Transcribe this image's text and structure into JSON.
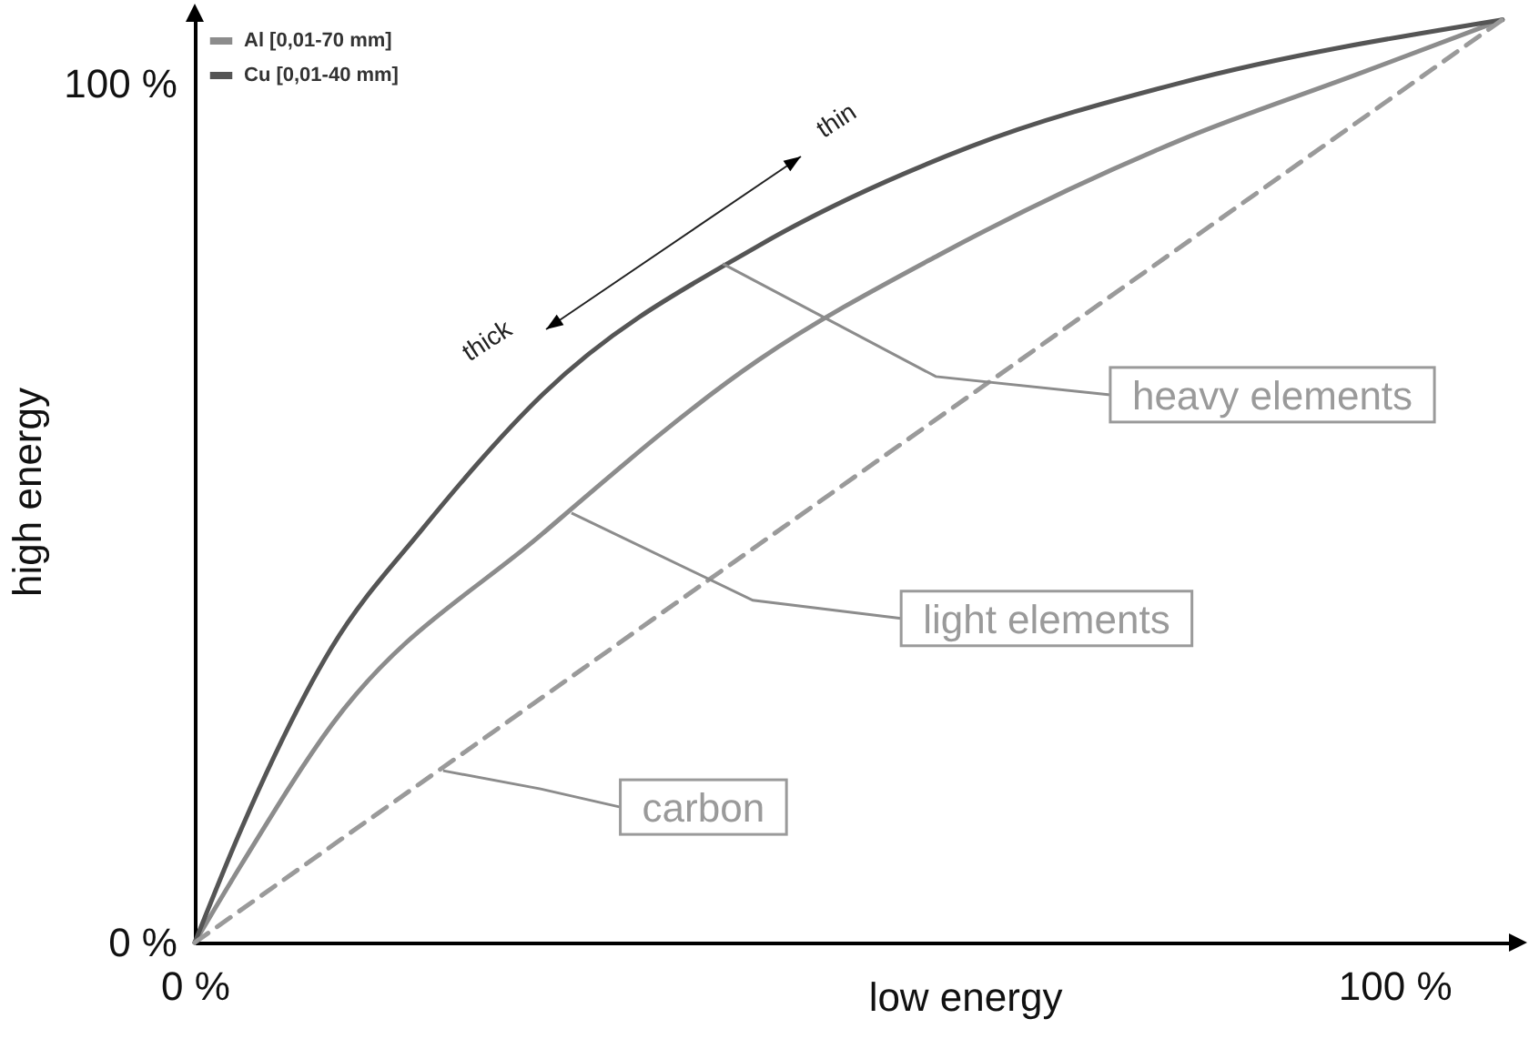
{
  "chart_data": {
    "type": "line",
    "xlabel": "low energy",
    "ylabel": "high energy",
    "xlim": [
      0,
      110
    ],
    "ylim": [
      0,
      108
    ],
    "xticks": [
      {
        "value": 0,
        "label": "0 %"
      },
      {
        "value": 100,
        "label": "100 %"
      }
    ],
    "yticks": [
      {
        "value": 0,
        "label": "0 %"
      },
      {
        "value": 100,
        "label": "100 %"
      }
    ],
    "legend": "top left",
    "series": [
      {
        "name": "Al [0,01-70 mm]",
        "color": "#8c8c8c",
        "x": [
          0,
          3.9,
          11.4,
          29.0,
          47.0,
          62.0,
          82.0,
          97.0,
          109
        ],
        "values": [
          0,
          9.1,
          25.3,
          47.6,
          67.8,
          80.0,
          93.3,
          101.1,
          107.4
        ]
      },
      {
        "name": "Cu [0,01-40 mm]",
        "color": "#555555",
        "x": [
          0,
          3.9,
          11.4,
          18.9,
          29.0,
          47.0,
          64.6,
          82.0,
          109
        ],
        "values": [
          0,
          13.3,
          34.3,
          48.0,
          63.8,
          81.1,
          92.6,
          100,
          107.4
        ]
      },
      {
        "color": "#9a9a9a",
        "line_style": "dashed",
        "x": [
          0,
          109
        ],
        "values": [
          0,
          107.4
        ]
      }
    ],
    "annotations": [
      {
        "text": "heavy elements",
        "x": 44,
        "y": 79
      },
      {
        "text": "light elements",
        "x": 31.4,
        "y": 50
      },
      {
        "text": "carbon",
        "x": 20.7,
        "y": 20
      },
      "thick",
      "thin"
    ]
  }
}
